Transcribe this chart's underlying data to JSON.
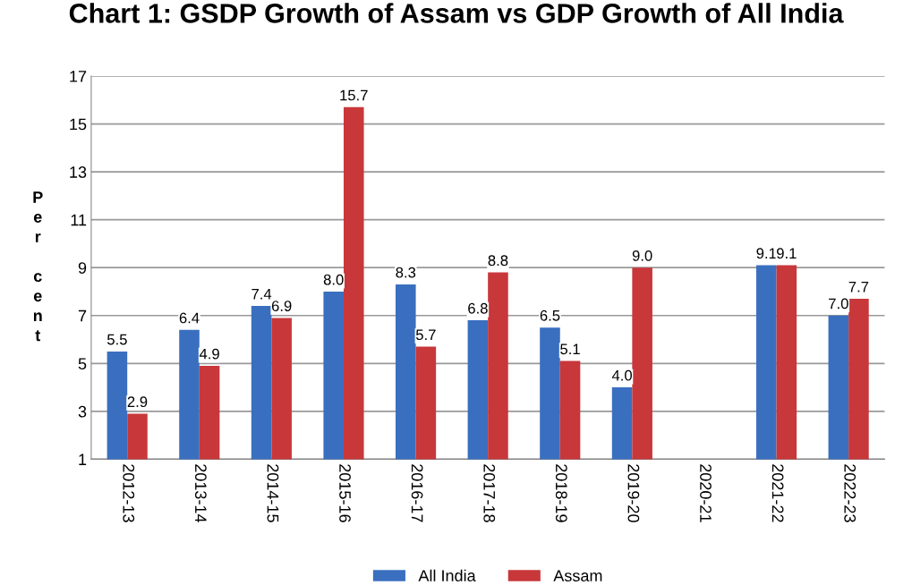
{
  "chart_data": {
    "type": "bar",
    "title": "Chart 1: GSDP Growth of Assam vs GDP Growth of All India",
    "ylabel": "Per cent",
    "categories": [
      "2012-13",
      "2013-14",
      "2014-15",
      "2015-16",
      "2016-17",
      "2017-18",
      "2018-19",
      "2019-20",
      "2020-21",
      "2021-22",
      "2022-23"
    ],
    "series": [
      {
        "name": "All India",
        "color": "#3a6fbf",
        "values": [
          5.5,
          6.4,
          7.4,
          8.0,
          8.3,
          6.8,
          6.5,
          4.0,
          null,
          9.1,
          7.0
        ],
        "value_labels": [
          "5.5",
          "6.4",
          "7.4",
          "8.0",
          "8.3",
          "6.8",
          "6.5",
          "4.0",
          null,
          "9.1",
          "7.0"
        ]
      },
      {
        "name": "Assam",
        "color": "#c8373a",
        "values": [
          2.9,
          4.9,
          6.9,
          15.7,
          5.7,
          8.8,
          5.1,
          9.0,
          null,
          9.1,
          7.7
        ],
        "value_labels": [
          "2.9",
          "4.9",
          "6.9",
          "15.7",
          "5.7",
          "8.8",
          "5.1",
          "9.0",
          null,
          "9.1",
          "7.7"
        ]
      }
    ],
    "ylim": [
      1,
      17
    ],
    "yticks": [
      1,
      3,
      5,
      7,
      9,
      11,
      13,
      15,
      17
    ],
    "grid": "y",
    "legend": "bottom"
  }
}
